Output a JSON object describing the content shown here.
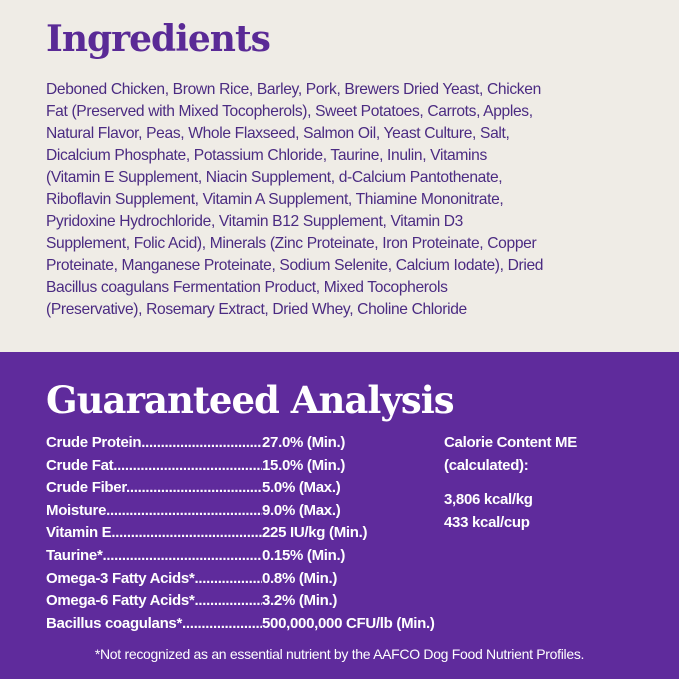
{
  "ingredients": {
    "title": "Ingredients",
    "lines": [
      "Deboned Chicken, Brown Rice, Barley, Pork, Brewers Dried Yeast, Chicken",
      "Fat (Preserved with Mixed Tocopherols), Sweet Potatoes, Carrots, Apples,",
      "Natural Flavor, Peas, Whole Flaxseed, Salmon Oil, Yeast Culture, Salt,",
      "Dicalcium Phosphate, Potassium Chloride, Taurine, Inulin, Vitamins",
      "(Vitamin E Supplement, Niacin Supplement, d-Calcium Pantothenate,",
      "Riboflavin Supplement, Vitamin A Supplement, Thiamine Mononitrate,",
      "Pyridoxine Hydrochloride, Vitamin B12 Supplement, Vitamin D3",
      "Supplement, Folic Acid), Minerals (Zinc Proteinate, Iron Proteinate, Copper",
      "Proteinate, Manganese Proteinate, Sodium Selenite, Calcium Iodate), Dried",
      "Bacillus coagulans Fermentation Product, Mixed Tocopherols",
      "(Preservative), Rosemary Extract, Dried Whey, Choline Chloride"
    ]
  },
  "analysis": {
    "title": "Guaranteed Analysis",
    "rows": [
      {
        "label": "Crude  Protein..................................",
        "value": "27.0% (Min.)"
      },
      {
        "label": "Crude  Fat..............................................",
        "value": "15.0% (Min.)"
      },
      {
        "label": "Crude  Fiber.........................................",
        "value": "5.0% (Max.)"
      },
      {
        "label": "Moisture.................................................",
        "value": "9.0% (Max.)"
      },
      {
        "label": "Vitamin  E..............................................",
        "value": "225 IU/kg (Min.)"
      },
      {
        "label": "Taurine*..................................................",
        "value": "0.15% (Min.)"
      },
      {
        "label": "Omega-3  Fatty Acids*..........................",
        "value": "0.8% (Min.)"
      },
      {
        "label": "Omega-6  Fatty Acids*..........................",
        "value": "3.2% (Min.)"
      },
      {
        "label": "Bacillus  coagulans*.............................",
        "value": "500,000,000 CFU/lb (Min.)"
      }
    ],
    "calorie": {
      "heading_1": "Calorie Content ME",
      "heading_2": "(calculated):",
      "per_kg": "3,806 kcal/kg",
      "per_cup": "433 kcal/cup"
    },
    "footnote": "*Not recognized as an essential nutrient by the AAFCO Dog Food Nutrient Profiles."
  },
  "colors": {
    "cream": "#efece6",
    "purple": "#5f2b9c",
    "title_purple": "#5a2a96",
    "text_purple": "#4b2b82"
  }
}
